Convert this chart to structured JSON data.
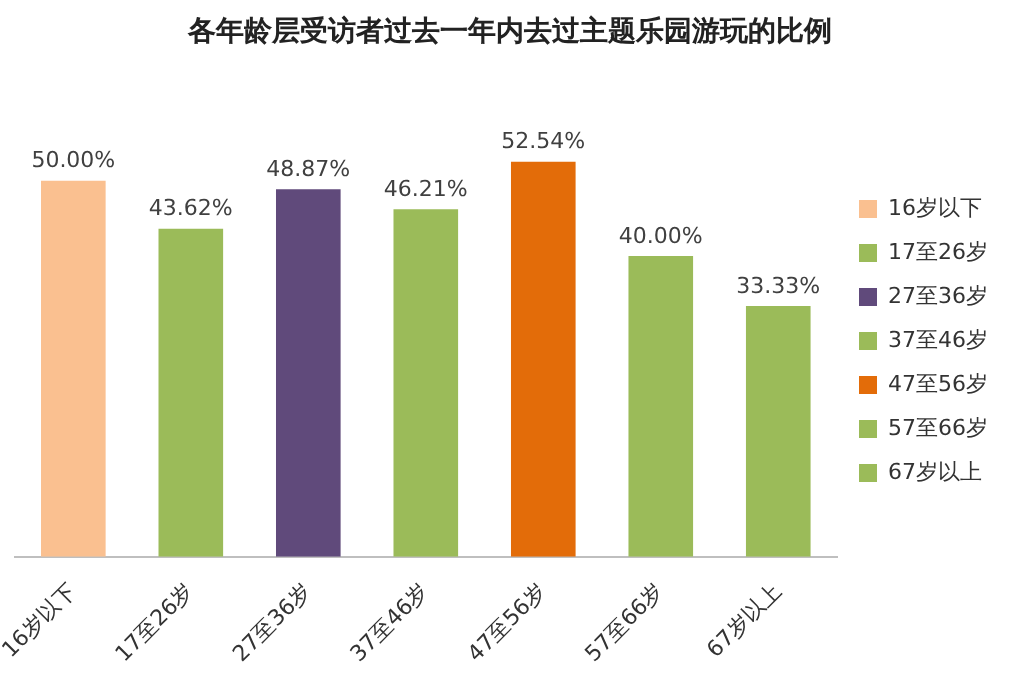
{
  "chart_data": {
    "type": "bar",
    "title": "各年龄层受访者过去一年内去过主题乐园游玩的比例",
    "categories": [
      "16岁以下",
      "17至26岁",
      "27至36岁",
      "37至46岁",
      "47至56岁",
      "57至66岁",
      "67岁以上"
    ],
    "series": [
      {
        "name": "16岁以下",
        "color": "#fac090",
        "values": [
          50.0,
          null,
          null,
          null,
          null,
          null,
          null
        ],
        "value_labels": [
          "50.00%",
          null,
          null,
          null,
          null,
          null,
          null
        ]
      },
      {
        "name": "17至26岁",
        "color": "#9bbb59",
        "values": [
          null,
          43.62,
          null,
          null,
          null,
          null,
          null
        ],
        "value_labels": [
          null,
          "43.62%",
          null,
          null,
          null,
          null,
          null
        ]
      },
      {
        "name": "27至36岁",
        "color": "#604a7b",
        "values": [
          null,
          null,
          48.87,
          null,
          null,
          null,
          null
        ],
        "value_labels": [
          null,
          null,
          "48.87%",
          null,
          null,
          null,
          null
        ]
      },
      {
        "name": "37至46岁",
        "color": "#9bbb59",
        "values": [
          null,
          null,
          null,
          46.21,
          null,
          null,
          null
        ],
        "value_labels": [
          null,
          null,
          null,
          "46.21%",
          null,
          null,
          null
        ]
      },
      {
        "name": "47至56岁",
        "color": "#e36c09",
        "values": [
          null,
          null,
          null,
          null,
          52.54,
          null,
          null
        ],
        "value_labels": [
          null,
          null,
          null,
          null,
          "52.54%",
          null,
          null
        ]
      },
      {
        "name": "57至66岁",
        "color": "#9bbb59",
        "values": [
          null,
          null,
          null,
          null,
          null,
          40.0,
          null
        ],
        "value_labels": [
          null,
          null,
          null,
          null,
          null,
          "40.00%",
          null
        ]
      },
      {
        "name": "67岁以上",
        "color": "#9bbb59",
        "values": [
          null,
          null,
          null,
          null,
          null,
          null,
          33.33
        ],
        "value_labels": [
          null,
          null,
          null,
          null,
          null,
          null,
          "33.33%"
        ]
      }
    ],
    "legend": "right",
    "grid": false
  }
}
